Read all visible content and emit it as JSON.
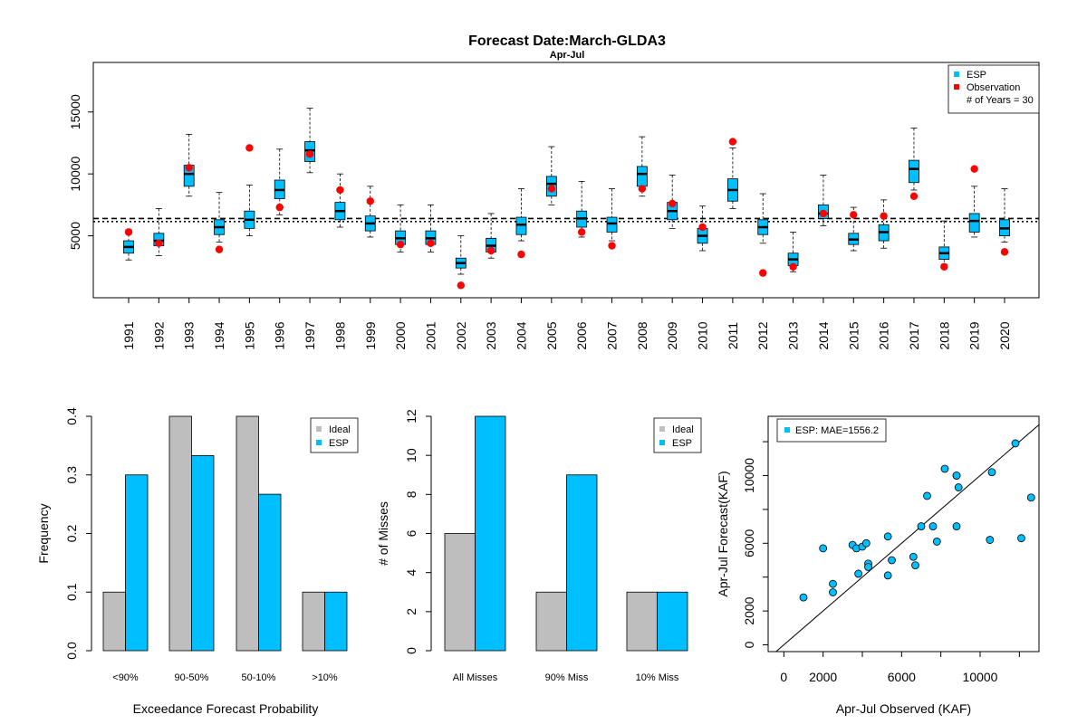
{
  "page": {
    "title": "Forecast Date:March-GLDA3",
    "subtitle": "Apr-Jul"
  },
  "colors": {
    "esp": "#00bfff",
    "observation": "#ff0000",
    "ideal": "#bebebe",
    "scatter_point": "#1e90c8"
  },
  "chart_data": [
    {
      "type": "box",
      "id": "boxplot",
      "title": "",
      "ylim": [
        0,
        19000
      ],
      "yticks": [
        5000,
        10000,
        15000
      ],
      "legend": {
        "items": [
          "ESP",
          "Observation"
        ],
        "note": "# of Years = 30",
        "position": "top-right"
      },
      "reference_lines": [
        6400,
        6150
      ],
      "years": [
        "1991",
        "1992",
        "1993",
        "1994",
        "1995",
        "1996",
        "1997",
        "1998",
        "1999",
        "2000",
        "2001",
        "2002",
        "2003",
        "2004",
        "2005",
        "2006",
        "2007",
        "2008",
        "2009",
        "2010",
        "2011",
        "2012",
        "2013",
        "2014",
        "2015",
        "2016",
        "2017",
        "2018",
        "2019",
        "2020"
      ],
      "boxes": [
        [
          3050,
          3600,
          4100,
          4600,
          5500
        ],
        [
          3400,
          4200,
          4600,
          5200,
          7200
        ],
        [
          8200,
          9000,
          10000,
          10700,
          13200
        ],
        [
          4500,
          5100,
          5700,
          6300,
          8500
        ],
        [
          5000,
          5600,
          6300,
          7000,
          9100
        ],
        [
          6700,
          8000,
          8700,
          9500,
          12000
        ],
        [
          10100,
          11000,
          11900,
          12600,
          15300
        ],
        [
          5700,
          6300,
          7000,
          7700,
          10000
        ],
        [
          4900,
          5400,
          6000,
          6600,
          9000
        ],
        [
          3700,
          4300,
          4800,
          5400,
          7500
        ],
        [
          3700,
          4300,
          4800,
          5400,
          7500
        ],
        [
          1900,
          2400,
          2800,
          3200,
          5000
        ],
        [
          3200,
          3700,
          4200,
          4800,
          6800
        ],
        [
          4600,
          5100,
          5900,
          6500,
          8800
        ],
        [
          7500,
          8200,
          9200,
          9800,
          12200
        ],
        [
          4900,
          5700,
          6400,
          7000,
          9400
        ],
        [
          4600,
          5300,
          6000,
          6500,
          8800
        ],
        [
          8200,
          9000,
          10000,
          10600,
          13000
        ],
        [
          5600,
          6300,
          7000,
          7700,
          9900
        ],
        [
          3800,
          4400,
          5000,
          5600,
          7400
        ],
        [
          7200,
          7800,
          8700,
          9600,
          12100
        ],
        [
          4400,
          5100,
          5700,
          6300,
          8400
        ],
        [
          2100,
          2600,
          3100,
          3600,
          5300
        ],
        [
          5800,
          6400,
          6800,
          7500,
          9900
        ],
        [
          3800,
          4300,
          4700,
          5200,
          7300
        ],
        [
          4000,
          4600,
          5300,
          5900,
          7900
        ],
        [
          8700,
          9300,
          10400,
          11100,
          13700
        ],
        [
          2700,
          3100,
          3600,
          4100,
          6200
        ],
        [
          4900,
          5300,
          6200,
          6800,
          9000
        ],
        [
          4500,
          5000,
          5600,
          6300,
          8800
        ]
      ],
      "observations": [
        5300,
        4400,
        10500,
        3900,
        12100,
        7300,
        11600,
        8700,
        7800,
        4300,
        4400,
        1000,
        3800,
        3500,
        8800,
        5300,
        4200,
        8800,
        7600,
        5700,
        12600,
        2000,
        2500,
        6800,
        6700,
        6600,
        8200,
        2500,
        10400,
        3700
      ]
    },
    {
      "type": "bar",
      "id": "exceedance",
      "xlabel": "Exceedance Forecast Probability",
      "ylabel": "Frequency",
      "ylim": [
        0,
        0.4
      ],
      "yticks": [
        "0.0",
        "0.1",
        "0.2",
        "0.3",
        "0.4"
      ],
      "categories": [
        "<90%",
        "90-50%",
        "50-10%",
        ">10%"
      ],
      "series": [
        {
          "name": "Ideal",
          "values": [
            0.1,
            0.4,
            0.4,
            0.1
          ]
        },
        {
          "name": "ESP",
          "values": [
            0.3,
            0.333,
            0.267,
            0.1
          ]
        }
      ],
      "legend_position": "top-right"
    },
    {
      "type": "bar",
      "id": "misses",
      "xlabel": "",
      "ylabel": "# of Misses",
      "ylim": [
        0,
        12
      ],
      "yticks": [
        "0",
        "2",
        "4",
        "6",
        "8",
        "10",
        "12"
      ],
      "categories": [
        "All Misses",
        "90% Miss",
        "10% Miss"
      ],
      "series": [
        {
          "name": "Ideal",
          "values": [
            6,
            3,
            3
          ]
        },
        {
          "name": "ESP",
          "values": [
            12,
            9,
            3
          ]
        }
      ],
      "legend_position": "top-right"
    },
    {
      "type": "scatter",
      "id": "scatter",
      "xlabel": "Apr-Jul Observed (KAF)",
      "ylabel": "Apr-Jul Forecast(KAF)",
      "xlim": [
        -800,
        13000
      ],
      "ylim": [
        -400,
        13500
      ],
      "xticks": [
        "0",
        "2000",
        "6000",
        "10000"
      ],
      "xtick_values": [
        0,
        2000,
        6000,
        10000
      ],
      "yticks": [
        "0",
        "2000",
        "6000",
        "10000"
      ],
      "ytick_values": [
        0,
        2000,
        6000,
        10000
      ],
      "legend": "ESP: MAE=1556.2",
      "points": [
        [
          1000,
          2800
        ],
        [
          2000,
          5700
        ],
        [
          2500,
          3600
        ],
        [
          2500,
          3100
        ],
        [
          3500,
          5900
        ],
        [
          3700,
          5700
        ],
        [
          3800,
          4200
        ],
        [
          4000,
          5800
        ],
        [
          4200,
          6000
        ],
        [
          4300,
          4800
        ],
        [
          4300,
          4600
        ],
        [
          5300,
          4100
        ],
        [
          5300,
          6400
        ],
        [
          5500,
          5000
        ],
        [
          6600,
          5200
        ],
        [
          6700,
          4700
        ],
        [
          7000,
          7000
        ],
        [
          7300,
          8800
        ],
        [
          7600,
          7000
        ],
        [
          7800,
          6100
        ],
        [
          8200,
          10400
        ],
        [
          8800,
          7000
        ],
        [
          8800,
          10000
        ],
        [
          8900,
          9300
        ],
        [
          10500,
          6200
        ],
        [
          10600,
          10200
        ],
        [
          11800,
          11900
        ],
        [
          12100,
          6300
        ],
        [
          12600,
          8700
        ],
        [
          8800,
          10000
        ]
      ]
    }
  ]
}
